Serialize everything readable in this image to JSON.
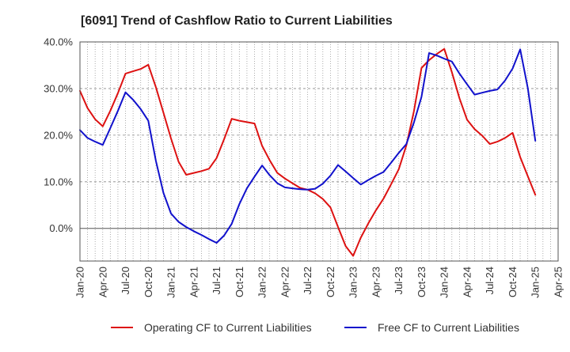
{
  "chart_data": {
    "type": "line",
    "title": "[6091]  Trend of Cashflow Ratio to Current Liabilities",
    "xlabel": "",
    "ylabel": "",
    "ylim": [
      -7,
      40
    ],
    "y_ticks": [
      "0.0%",
      "10.0%",
      "20.0%",
      "30.0%",
      "40.0%"
    ],
    "y_tick_values": [
      0,
      10,
      20,
      30,
      40
    ],
    "x_range": [
      "2020-01",
      "2025-04"
    ],
    "x_tick_labels": [
      "Jan-20",
      "Apr-20",
      "Jul-20",
      "Oct-20",
      "Jan-21",
      "Apr-21",
      "Jul-21",
      "Oct-21",
      "Jan-22",
      "Apr-22",
      "Jul-22",
      "Oct-22",
      "Jan-23",
      "Apr-23",
      "Jul-23",
      "Oct-23",
      "Jan-24",
      "Apr-24",
      "Jul-24",
      "Oct-24",
      "Jan-25",
      "Apr-25"
    ],
    "x": [
      "2020-01",
      "2020-02",
      "2020-03",
      "2020-04",
      "2020-05",
      "2020-06",
      "2020-07",
      "2020-08",
      "2020-09",
      "2020-10",
      "2020-11",
      "2020-12",
      "2021-01",
      "2021-02",
      "2021-03",
      "2021-04",
      "2021-05",
      "2021-06",
      "2021-07",
      "2021-08",
      "2021-09",
      "2021-10",
      "2021-11",
      "2021-12",
      "2022-01",
      "2022-02",
      "2022-03",
      "2022-04",
      "2022-05",
      "2022-06",
      "2022-07",
      "2022-08",
      "2022-09",
      "2022-10",
      "2022-11",
      "2022-12",
      "2023-01",
      "2023-02",
      "2023-03",
      "2023-04",
      "2023-05",
      "2023-06",
      "2023-07",
      "2023-08",
      "2023-09",
      "2023-10",
      "2023-11",
      "2023-12",
      "2024-01",
      "2024-02",
      "2024-03",
      "2024-04",
      "2024-05",
      "2024-06",
      "2024-07",
      "2024-08",
      "2024-09",
      "2024-10",
      "2024-11",
      "2024-12",
      "2025-01"
    ],
    "grid": true,
    "legend_position": "bottom",
    "series": [
      {
        "name": "Operating CF to Current Liabilities",
        "color": "#dd1111",
        "values": [
          29.5,
          25.8,
          23.4,
          21.9,
          25.2,
          29.0,
          33.2,
          33.7,
          34.2,
          35.1,
          30.3,
          24.8,
          19.3,
          14.3,
          11.5,
          11.9,
          12.3,
          12.8,
          15.1,
          19.2,
          23.5,
          23.1,
          22.8,
          22.5,
          17.7,
          14.6,
          11.9,
          10.7,
          9.7,
          8.7,
          8.3,
          7.5,
          6.3,
          4.5,
          0.3,
          -3.8,
          -5.9,
          -2.0,
          1.1,
          3.9,
          6.4,
          9.5,
          12.7,
          17.8,
          25.1,
          34.4,
          36.1,
          37.4,
          38.5,
          33.5,
          27.9,
          23.3,
          21.3,
          19.9,
          18.1,
          18.6,
          19.4,
          20.5,
          15.3,
          11.2,
          7.2
        ]
      },
      {
        "name": "Free CF to Current Liabilities",
        "color": "#1111cc",
        "values": [
          21.1,
          19.4,
          18.6,
          17.9,
          21.5,
          25.2,
          29.2,
          27.6,
          25.6,
          23.1,
          14.5,
          7.6,
          3.2,
          1.4,
          0.3,
          -0.6,
          -1.4,
          -2.3,
          -3.1,
          -1.5,
          1.0,
          5.2,
          8.6,
          11.1,
          13.5,
          11.4,
          9.7,
          8.8,
          8.6,
          8.4,
          8.3,
          8.5,
          9.6,
          11.3,
          13.6,
          12.2,
          10.8,
          9.4,
          10.4,
          11.3,
          12.1,
          14.1,
          16.2,
          18.1,
          22.7,
          28.2,
          37.6,
          37.1,
          36.4,
          35.8,
          33.2,
          30.9,
          28.7,
          29.1,
          29.5,
          29.8,
          31.7,
          34.3,
          38.4,
          30.1,
          18.8
        ]
      }
    ]
  }
}
